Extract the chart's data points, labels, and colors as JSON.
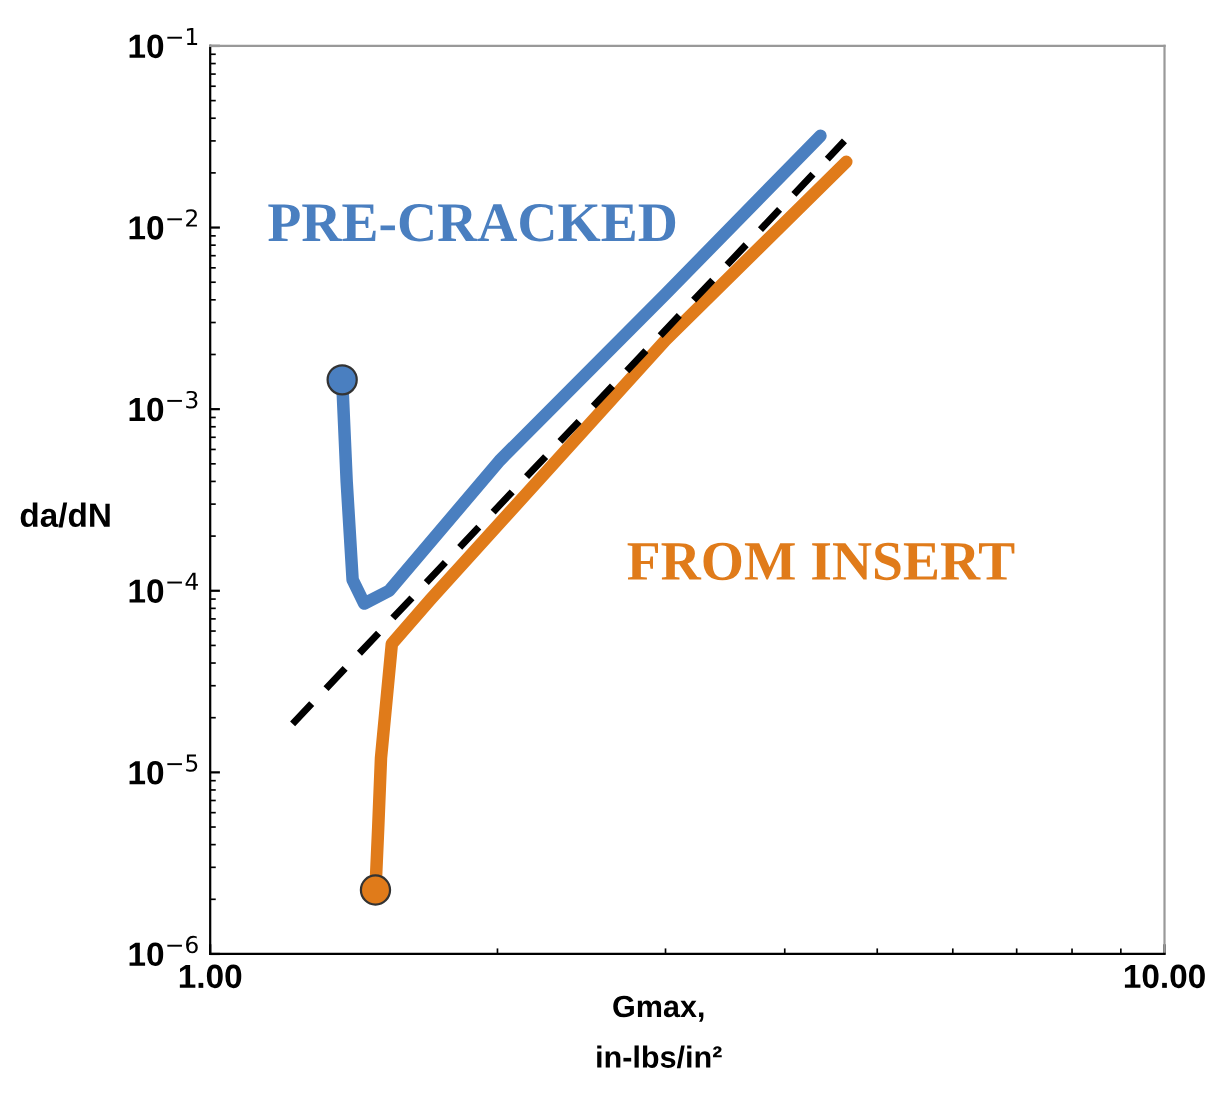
{
  "chart_data": {
    "type": "line",
    "xlabel": "Gmax,\nin-lbs/in²",
    "ylabel": "da/dN",
    "log": "xy",
    "xlim": [
      1,
      10
    ],
    "ylim": [
      1e-06,
      0.1
    ],
    "xticks": [
      {
        "value": 1,
        "label": "1.00"
      },
      {
        "value": 10,
        "label": "10.00"
      }
    ],
    "yticks": [
      {
        "value": 1e-06,
        "label": "10$^{−6}$"
      },
      {
        "value": 1e-05,
        "label": "10$^{−5}$"
      },
      {
        "value": 0.0001,
        "label": "10$^{−4}$"
      },
      {
        "value": 0.001,
        "label": "10$^{−3}$"
      },
      {
        "value": 0.01,
        "label": "10$^{−2}$"
      },
      {
        "value": 0.1,
        "label": "10$^{−1}$"
      }
    ],
    "grid": false,
    "legend": false,
    "series": [
      {
        "name": "PRE-CRACKED",
        "color": "#4a7fc0",
        "line_style": "solid",
        "x": [
          1.375,
          1.39,
          1.41,
          1.45,
          1.54,
          2.01,
          3.0,
          4.36
        ],
        "values": [
          0.00145,
          0.0004,
          0.000115,
          8.5e-05,
          0.0001,
          0.00052,
          0.0043,
          0.032
        ]
      },
      {
        "name": "FROM INSERT",
        "color": "#e07b1a",
        "line_style": "solid",
        "x": [
          1.49,
          1.5,
          1.51,
          1.55,
          1.7,
          3.0,
          4.64
        ],
        "values": [
          2.25e-06,
          5e-06,
          1.2e-05,
          5.1e-05,
          8.9e-05,
          0.0024,
          0.023
        ]
      },
      {
        "color": "#000000",
        "line_style": "dashed",
        "x": [
          1.22,
          4.62
        ],
        "values": [
          1.85e-05,
          0.03
        ]
      },
      {
        "type": "scatter",
        "marker": "circle",
        "color": "#4a7fc0",
        "x": [
          1.375
        ],
        "values": [
          0.00145
        ]
      },
      {
        "type": "scatter",
        "marker": "circle",
        "color": "#e07b1a",
        "x": [
          1.49
        ],
        "values": [
          2.25e-06
        ]
      }
    ]
  }
}
